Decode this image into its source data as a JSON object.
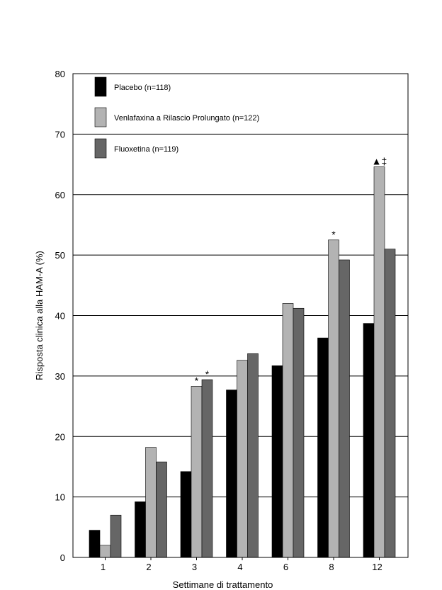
{
  "chart_data": {
    "type": "bar",
    "title": "",
    "xlabel": "Settimane di trattamento",
    "ylabel": "Risposta clinica alla HAM-A (%)",
    "ylim": [
      0,
      80
    ],
    "yticks": [
      0,
      10,
      20,
      30,
      40,
      50,
      60,
      70,
      80
    ],
    "grid": true,
    "legend_position": "top-left",
    "categories": [
      "1",
      "2",
      "3",
      "4",
      "6",
      "8",
      "12"
    ],
    "series": [
      {
        "name": "Placebo (n=118)",
        "color": "#000000",
        "values": [
          4.5,
          9.2,
          14.2,
          27.7,
          31.7,
          36.3,
          38.7
        ]
      },
      {
        "name": "Venlafaxina a Rilascio Prolungato (n=122)",
        "color": "#b3b3b3",
        "values": [
          2.0,
          18.2,
          28.3,
          32.6,
          42.0,
          52.5,
          64.6
        ]
      },
      {
        "name": "Fluoxetina (n=119)",
        "color": "#666666",
        "values": [
          7.0,
          15.8,
          29.4,
          33.7,
          41.2,
          49.2,
          51.0
        ]
      }
    ],
    "annotations": [
      {
        "category": "3",
        "series": 1,
        "text": "*"
      },
      {
        "category": "3",
        "series": 2,
        "text": "*"
      },
      {
        "category": "8",
        "series": 1,
        "text": "*"
      },
      {
        "category": "12",
        "series": 1,
        "text": "▲‡"
      }
    ]
  }
}
